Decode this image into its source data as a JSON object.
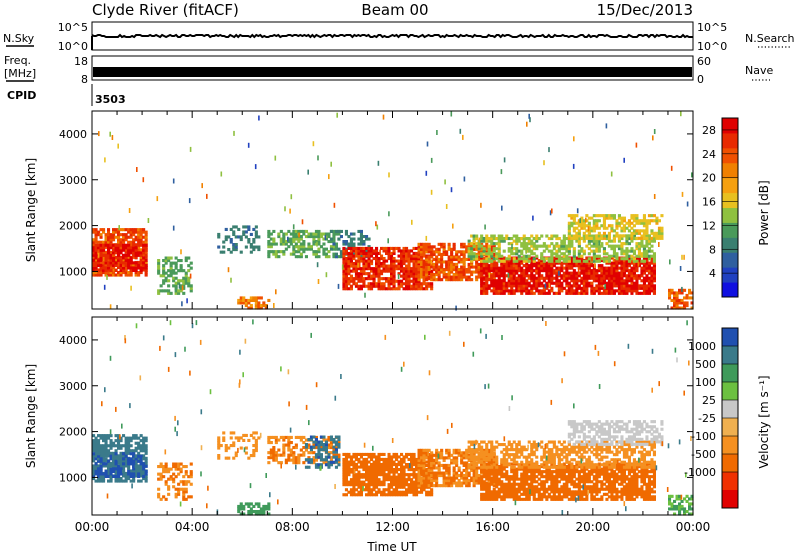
{
  "header": {
    "station": "Clyde River (fitACF)",
    "beam": "Beam 00",
    "date": "15/Dec/2013"
  },
  "panels": {
    "nsky": {
      "label": "N.Sky",
      "tick_top": "10^5",
      "tick_bottom": "10^0"
    },
    "nsearch": {
      "label": "N.Search",
      "tick_top": "10^5",
      "tick_bottom": "10^0"
    },
    "freq": {
      "label_line1": "Freq.",
      "label_line2": "[MHz]",
      "tick_top": "18",
      "tick_bottom": "8"
    },
    "nave": {
      "label": "Nave",
      "tick_top": "60",
      "tick_bottom": "0"
    },
    "cpid": {
      "label": "CPID",
      "value": "3503"
    }
  },
  "colors": {
    "power_scale": [
      "#1010e0",
      "#2040c0",
      "#2f5f9f",
      "#3a7f70",
      "#4a9a5a",
      "#8fc040",
      "#e8c020",
      "#f5a010",
      "#f08000",
      "#f05000",
      "#e82a00",
      "#e00000"
    ],
    "velocity_scale": [
      "#2050b0",
      "#3a7a8a",
      "#3f9a5a",
      "#6cc040",
      "#c8c8c8",
      "#f0b050",
      "#f59020",
      "#f06a00",
      "#f03000",
      "#e00000"
    ]
  },
  "chart_data": [
    {
      "type": "heatmap",
      "name": "power",
      "xlabel": "",
      "ylabel": "Slant Range [km]",
      "x_ticks": [
        "00:00",
        "04:00",
        "08:00",
        "12:00",
        "16:00",
        "20:00",
        "00:00"
      ],
      "xlim_hours": [
        0,
        24
      ],
      "ylim": [
        180,
        4500
      ],
      "y_ticks": [
        1000,
        2000,
        3000,
        4000
      ],
      "colorbar": {
        "label": "Power [dB]",
        "ticks": [
          4,
          8,
          12,
          16,
          20,
          24,
          28
        ],
        "range": [
          0,
          30
        ]
      },
      "regions": [
        {
          "t": [
            0.0,
            2.2
          ],
          "r": [
            900,
            1900
          ],
          "v": 24,
          "d": 0.75
        },
        {
          "t": [
            0.0,
            2.2
          ],
          "r": [
            1000,
            1600
          ],
          "v": 28,
          "d": 0.7
        },
        {
          "t": [
            2.6,
            4.0
          ],
          "r": [
            500,
            1300
          ],
          "v": 12,
          "d": 0.45
        },
        {
          "t": [
            5.0,
            6.6
          ],
          "r": [
            1400,
            2000
          ],
          "v": 8,
          "d": 0.3
        },
        {
          "t": [
            5.8,
            7.0
          ],
          "r": [
            180,
            450
          ],
          "v": 22,
          "d": 0.6
        },
        {
          "t": [
            7.0,
            9.8
          ],
          "r": [
            1300,
            1900
          ],
          "v": 12,
          "d": 0.55
        },
        {
          "t": [
            9.5,
            11.0
          ],
          "r": [
            1300,
            1900
          ],
          "v": 8,
          "d": 0.4
        },
        {
          "t": [
            10.0,
            13.5
          ],
          "r": [
            600,
            1500
          ],
          "v": 26,
          "d": 0.8
        },
        {
          "t": [
            13.0,
            16.0
          ],
          "r": [
            800,
            1600
          ],
          "v": 24,
          "d": 0.75
        },
        {
          "t": [
            15.5,
            22.5
          ],
          "r": [
            500,
            1300
          ],
          "v": 28,
          "d": 0.85
        },
        {
          "t": [
            15.0,
            22.5
          ],
          "r": [
            1200,
            1800
          ],
          "v": 14,
          "d": 0.55
        },
        {
          "t": [
            19.0,
            22.8
          ],
          "r": [
            1700,
            2200
          ],
          "v": 16,
          "d": 0.6
        },
        {
          "t": [
            23.0,
            24.0
          ],
          "r": [
            180,
            600
          ],
          "v": 24,
          "d": 0.6
        }
      ]
    },
    {
      "type": "heatmap",
      "name": "velocity",
      "xlabel": "Time UT",
      "ylabel": "Slant Range [km]",
      "x_ticks": [
        "00:00",
        "04:00",
        "08:00",
        "12:00",
        "16:00",
        "20:00",
        "00:00"
      ],
      "xlim_hours": [
        0,
        24
      ],
      "ylim": [
        180,
        4500
      ],
      "y_ticks": [
        1000,
        2000,
        3000,
        4000
      ],
      "colorbar": {
        "label": "Velocity [m s⁻¹]",
        "ticks": [
          "1000",
          "500",
          "100",
          "25",
          "-25",
          "-100",
          "-500",
          "-1000"
        ],
        "range": [
          -1200,
          1200
        ]
      },
      "regions": [
        {
          "t": [
            0.0,
            2.2
          ],
          "r": [
            900,
            1900
          ],
          "v": 500,
          "d": 0.7
        },
        {
          "t": [
            0.0,
            2.2
          ],
          "r": [
            1000,
            1500
          ],
          "v": 800,
          "d": 0.55
        },
        {
          "t": [
            2.6,
            4.0
          ],
          "r": [
            500,
            1300
          ],
          "v": -300,
          "d": 0.4
        },
        {
          "t": [
            5.0,
            6.6
          ],
          "r": [
            1400,
            2000
          ],
          "v": -200,
          "d": 0.3
        },
        {
          "t": [
            5.8,
            7.0
          ],
          "r": [
            180,
            450
          ],
          "v": 80,
          "d": 0.5
        },
        {
          "t": [
            7.0,
            9.8
          ],
          "r": [
            1300,
            1900
          ],
          "v": -300,
          "d": 0.5
        },
        {
          "t": [
            8.5,
            9.8
          ],
          "r": [
            1200,
            1900
          ],
          "v": 700,
          "d": 0.45
        },
        {
          "t": [
            10.0,
            13.5
          ],
          "r": [
            600,
            1500
          ],
          "v": -400,
          "d": 0.8
        },
        {
          "t": [
            13.0,
            16.0
          ],
          "r": [
            800,
            1600
          ],
          "v": -300,
          "d": 0.7
        },
        {
          "t": [
            15.5,
            22.5
          ],
          "r": [
            500,
            1300
          ],
          "v": -450,
          "d": 0.8
        },
        {
          "t": [
            15.0,
            22.5
          ],
          "r": [
            1200,
            1800
          ],
          "v": -200,
          "d": 0.55
        },
        {
          "t": [
            19.0,
            22.8
          ],
          "r": [
            1700,
            2200
          ],
          "v": 0,
          "d": 0.55
        },
        {
          "t": [
            23.0,
            24.0
          ],
          "r": [
            180,
            600
          ],
          "v": 60,
          "d": 0.5
        }
      ]
    }
  ]
}
